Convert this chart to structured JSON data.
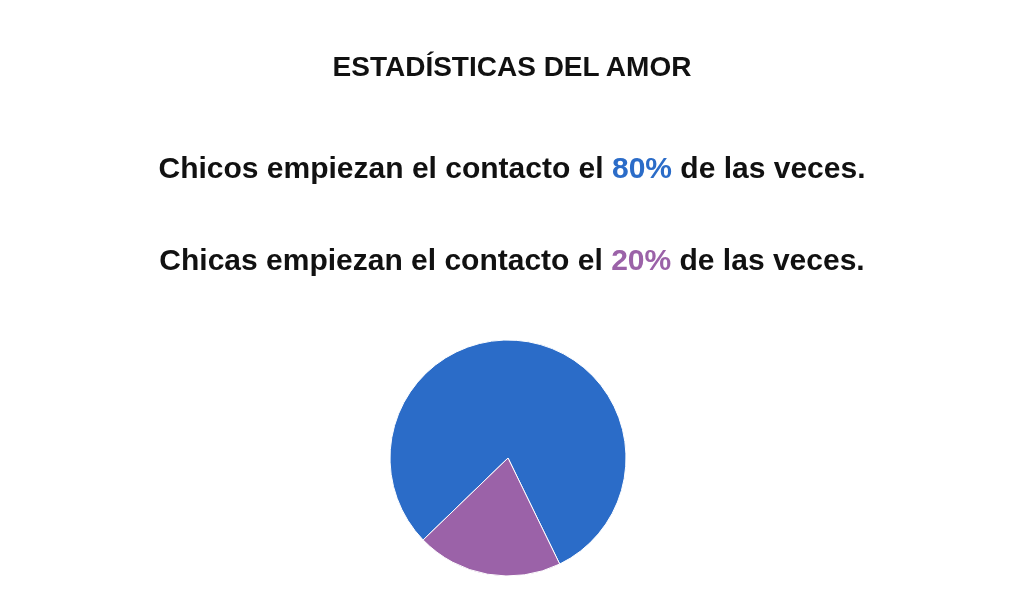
{
  "chart_data": {
    "type": "pie",
    "title": "ESTADÍSTICAS DEL AMOR",
    "annotations": [
      "Chicos empiezan el contacto el 80% de las veces.",
      "Chicas empiezan el contacto el 20% de las veces."
    ],
    "categories": [
      null,
      null
    ],
    "values": [
      80,
      20
    ],
    "colors": [
      "#2b6cc8",
      "#9b62a8"
    ]
  }
}
